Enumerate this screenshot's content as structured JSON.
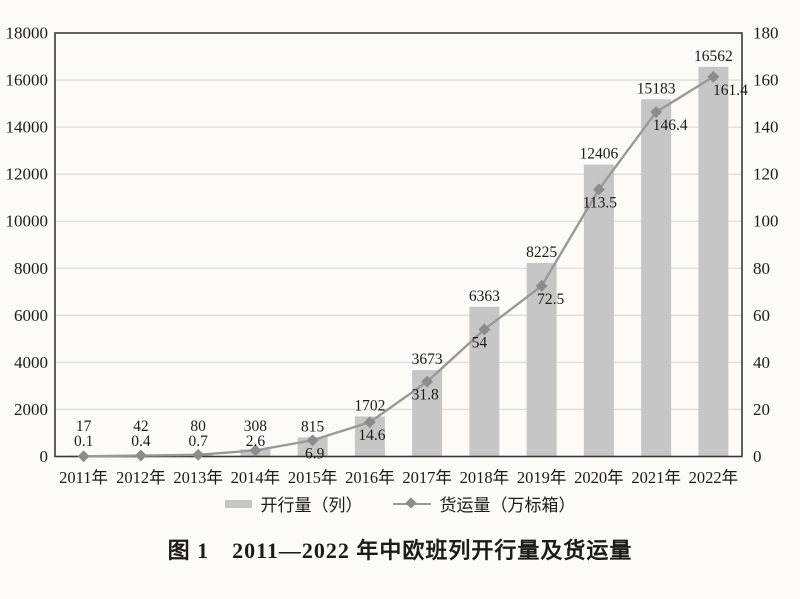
{
  "figure": {
    "caption": "图 1　2011—2022 年中欧班列开行量及货运量"
  },
  "chart_data": {
    "type": "bar",
    "subtype": "bar+line combo, dual axis",
    "title": "图 1　2011—2022 年中欧班列开行量及货运量",
    "categories": [
      "2011年",
      "2012年",
      "2013年",
      "2014年",
      "2015年",
      "2016年",
      "2017年",
      "2018年",
      "2019年",
      "2020年",
      "2021年",
      "2022年"
    ],
    "series": [
      {
        "name": "开行量（列）",
        "type": "bar",
        "axis": "left",
        "values": [
          17,
          42,
          80,
          308,
          815,
          1702,
          3673,
          6363,
          8225,
          12406,
          15183,
          16562
        ]
      },
      {
        "name": "货运量（万标箱）",
        "type": "line",
        "axis": "right",
        "values": [
          0.1,
          0.4,
          0.7,
          2.6,
          6.9,
          14.6,
          31.8,
          54,
          72.5,
          113.5,
          146.4,
          161.4
        ]
      }
    ],
    "left_axis": {
      "min": 0,
      "max": 18000,
      "step": 2000,
      "tick_labels": [
        "0",
        "2000",
        "4000",
        "6000",
        "8000",
        "10000",
        "12000",
        "14000",
        "16000",
        "18000"
      ]
    },
    "right_axis": {
      "min": 0,
      "max": 180,
      "step": 20,
      "tick_labels": [
        "0",
        "20",
        "40",
        "60",
        "80",
        "100",
        "120",
        "140",
        "160",
        "180"
      ]
    },
    "grid": true,
    "legend_position": "bottom",
    "data_labels": true,
    "colors": {
      "bar": "#c6c6c6",
      "line": "#999999",
      "marker": "#8c8c8c",
      "axis": "#3a3a3a",
      "gridline": "#dedcd8",
      "text": "#1d1a18",
      "background": "#fcfbf8"
    }
  }
}
